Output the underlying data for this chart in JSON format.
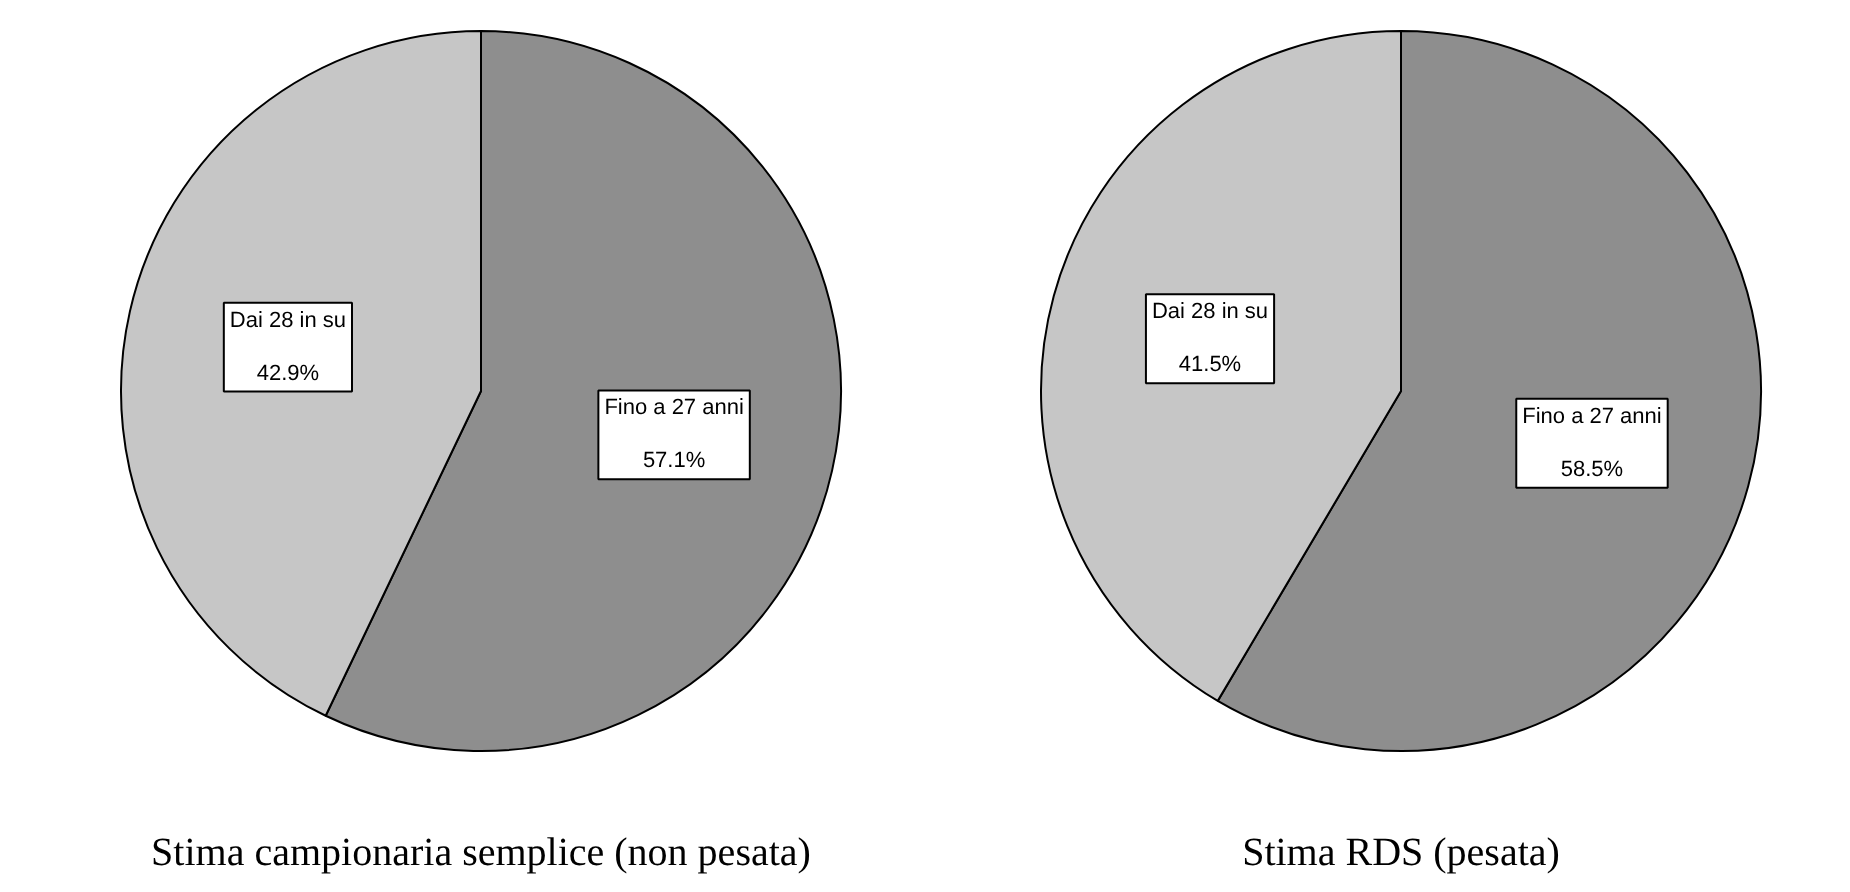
{
  "chart_data": [
    {
      "type": "pie",
      "title": "Stima campionaria semplice (non pesata)",
      "categories": [
        "Fino a 27 anni",
        "Dai 28 in su"
      ],
      "values": [
        57.1,
        42.9
      ],
      "value_labels": [
        "57.1%",
        "42.9%"
      ],
      "colors": [
        "#8e8e8e",
        "#c6c6c6"
      ]
    },
    {
      "type": "pie",
      "title": "Stima RDS (pesata)",
      "categories": [
        "Fino a 27 anni",
        "Dai 28 in su"
      ],
      "values": [
        58.5,
        41.5
      ],
      "value_labels": [
        "58.5%",
        "41.5%"
      ],
      "colors": [
        "#8e8e8e",
        "#c6c6c6"
      ]
    }
  ]
}
